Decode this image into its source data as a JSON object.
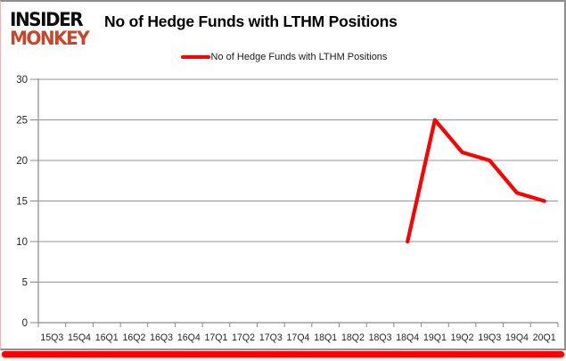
{
  "logo": {
    "line1": "INSIDER",
    "line2": "MONKEY"
  },
  "header": {
    "title": "No of Hedge Funds with LTHM Positions"
  },
  "legend": {
    "label": "No of Hedge Funds with LTHM Positions"
  },
  "colors": {
    "line": "#ff0000",
    "grid": "#969696",
    "axis_text": "#262626",
    "logo_red": "#c9452b",
    "bottom_bar": "#fd0202"
  },
  "chart_data": {
    "type": "line",
    "title": "No of Hedge Funds with LTHM Positions",
    "categories": [
      "15Q3",
      "15Q4",
      "16Q1",
      "16Q2",
      "16Q3",
      "16Q4",
      "17Q1",
      "17Q2",
      "17Q3",
      "17Q4",
      "18Q1",
      "18Q2",
      "18Q3",
      "18Q4",
      "19Q1",
      "19Q2",
      "19Q3",
      "19Q4",
      "20Q1"
    ],
    "series": [
      {
        "name": "No of Hedge Funds with LTHM Positions",
        "values": [
          null,
          null,
          null,
          null,
          null,
          null,
          null,
          null,
          null,
          null,
          null,
          null,
          null,
          10,
          25,
          21,
          20,
          16,
          15
        ]
      }
    ],
    "xlabel": "",
    "ylabel": "",
    "ylim": [
      0,
      30
    ],
    "yticks": [
      0,
      5,
      10,
      15,
      20,
      25,
      30
    ],
    "grid": true,
    "legend_position": "top"
  }
}
